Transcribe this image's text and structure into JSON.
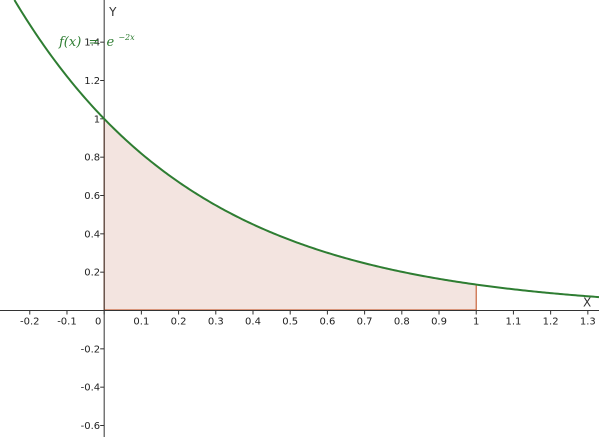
{
  "chart_data": {
    "type": "area",
    "title": "",
    "xlabel": "X",
    "ylabel": "Y",
    "xlim": [
      -0.28,
      1.33
    ],
    "ylim": [
      -0.66,
      1.62
    ],
    "x_ticks": [
      -0.2,
      -0.1,
      0,
      0.1,
      0.2,
      0.3,
      0.4,
      0.5,
      0.6,
      0.7,
      0.8,
      0.9,
      1,
      1.1,
      1.2,
      1.3
    ],
    "x_tick_labels": [
      "-0.2",
      "-0.1",
      "0",
      "0.1",
      "0.2",
      "0.3",
      "0.4",
      "0.5",
      "0.6",
      "0.7",
      "0.8",
      "0.9",
      "1",
      "1.1",
      "1.2",
      "1.3"
    ],
    "y_ticks": [
      -0.6,
      -0.4,
      -0.2,
      0.2,
      0.4,
      0.6,
      0.8,
      1,
      1.2,
      1.4
    ],
    "y_tick_labels": [
      "-0.6",
      "-0.4",
      "-0.2",
      "0.2",
      "0.4",
      "0.6",
      "0.8",
      "1",
      "1.2",
      "1.4"
    ],
    "function": {
      "label_lhs": "f(x)",
      "label_eq": "=",
      "label_base": "e",
      "label_exp": "−2x",
      "rate": -2,
      "color": "#2e7d32"
    },
    "shaded_region": {
      "from": 0,
      "to": 1,
      "fill": "#f3e4e0",
      "stroke": "#c8643c"
    },
    "series": [
      {
        "x": [
          0,
          0.1,
          0.2,
          0.3,
          0.4,
          0.5,
          0.6,
          0.7,
          0.8,
          0.9,
          1,
          1.1,
          1.2,
          1.3
        ],
        "values": [
          1,
          0.819,
          0.67,
          0.549,
          0.449,
          0.368,
          0.301,
          0.247,
          0.202,
          0.165,
          0.135,
          0.111,
          0.091,
          0.074
        ]
      }
    ],
    "grid": false,
    "axis_color": "#333333"
  }
}
